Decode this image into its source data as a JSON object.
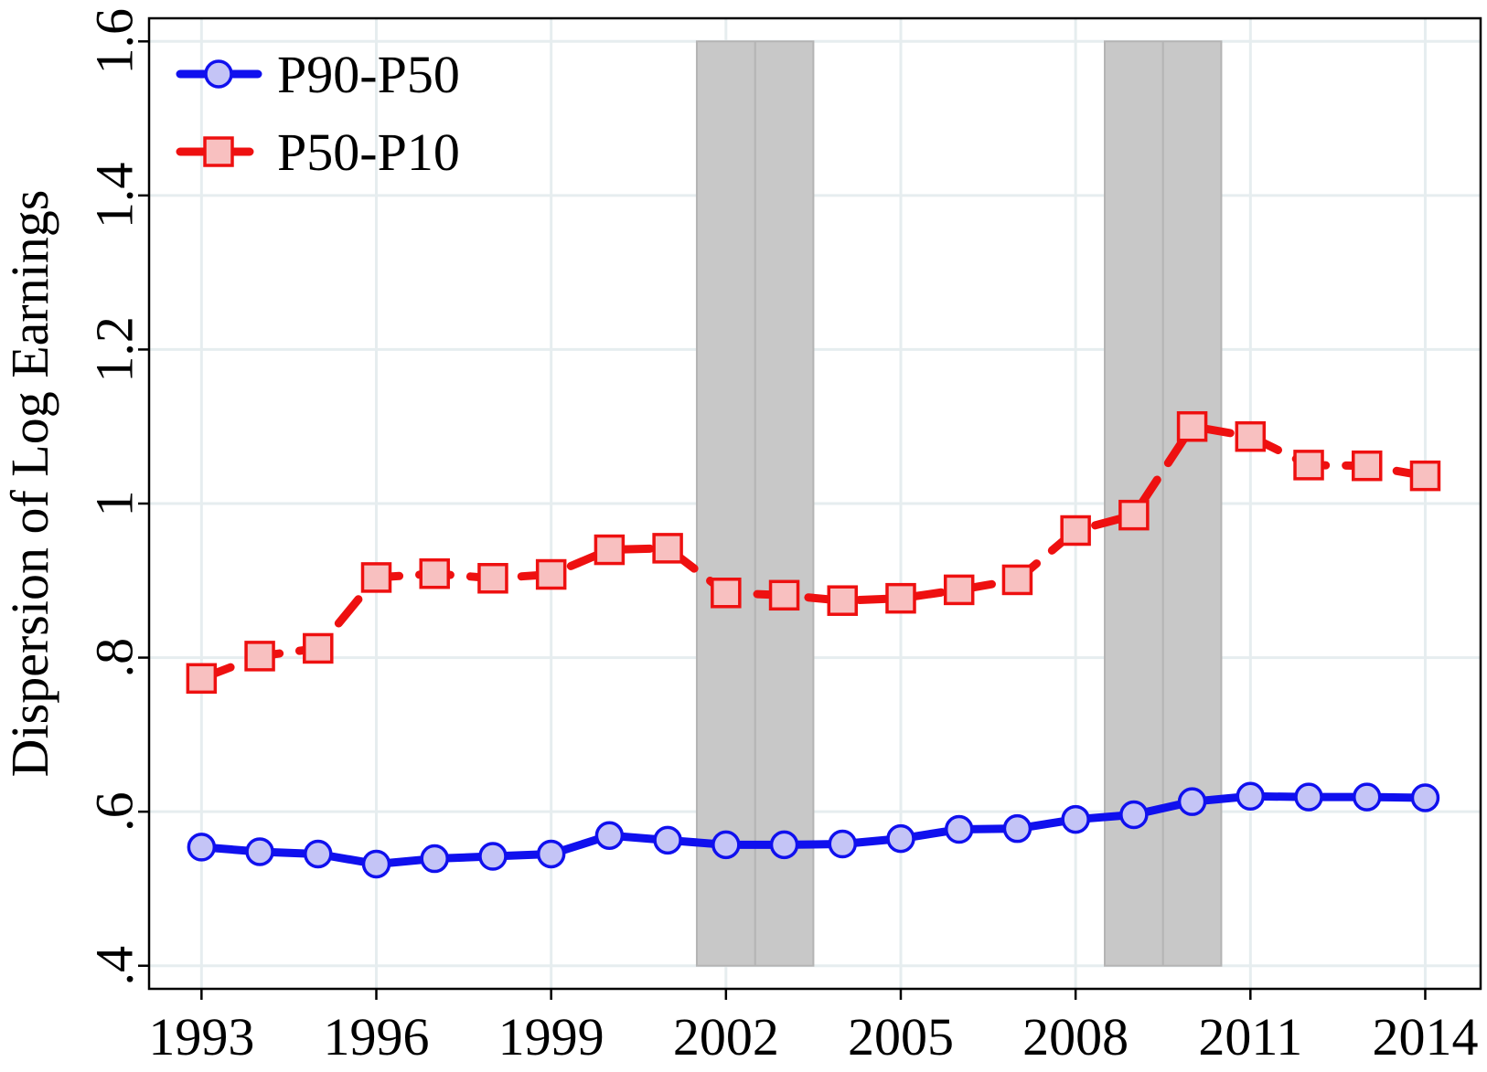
{
  "chart_data": {
    "type": "line",
    "title": "",
    "xlabel": "",
    "ylabel": "Dispersion of Log Earnings",
    "x": [
      1993,
      1994,
      1995,
      1996,
      1997,
      1998,
      1999,
      2000,
      2001,
      2002,
      2003,
      2004,
      2005,
      2006,
      2007,
      2008,
      2009,
      2010,
      2011,
      2012,
      2013,
      2014
    ],
    "xticks": [
      1993,
      1996,
      1999,
      2002,
      2005,
      2008,
      2011,
      2014
    ],
    "xtick_labels": [
      "1993",
      "1996",
      "1999",
      "2002",
      "2005",
      "2008",
      "2011",
      "2014"
    ],
    "yticks": [
      0.4,
      0.6,
      0.8,
      1.0,
      1.2,
      1.4,
      1.6
    ],
    "ytick_labels": [
      ".4",
      ".6",
      ".8",
      "1",
      "1.2",
      "1.4",
      "1.6"
    ],
    "xlim": [
      1992.1,
      2014.95
    ],
    "ylim": [
      0.37,
      1.63
    ],
    "grid": true,
    "legend_position": "top-left",
    "recession_shading": [
      {
        "start": 2001.5,
        "end": 2003.5,
        "top": 1.6,
        "bottom": 0.4,
        "divider": 2002.5
      },
      {
        "start": 2008.5,
        "end": 2010.5,
        "top": 1.6,
        "bottom": 0.4,
        "divider": 2009.5
      }
    ],
    "series": [
      {
        "name": "P90-P50",
        "marker": "circle",
        "line": "solid",
        "color": "#1010ee",
        "fill": "#c4c4f6",
        "values": [
          0.554,
          0.548,
          0.545,
          0.532,
          0.539,
          0.542,
          0.545,
          0.569,
          0.563,
          0.557,
          0.557,
          0.558,
          0.565,
          0.577,
          0.578,
          0.59,
          0.596,
          0.613,
          0.62,
          0.619,
          0.619,
          0.618
        ]
      },
      {
        "name": "P50-P10",
        "marker": "square",
        "line": "dashed",
        "color": "#ee1010",
        "fill": "#f8c0c0",
        "values": [
          0.773,
          0.802,
          0.812,
          0.904,
          0.909,
          0.903,
          0.908,
          0.94,
          0.942,
          0.884,
          0.881,
          0.874,
          0.877,
          0.888,
          0.901,
          0.965,
          0.985,
          1.1,
          1.087,
          1.05,
          1.049,
          1.036
        ]
      }
    ]
  }
}
